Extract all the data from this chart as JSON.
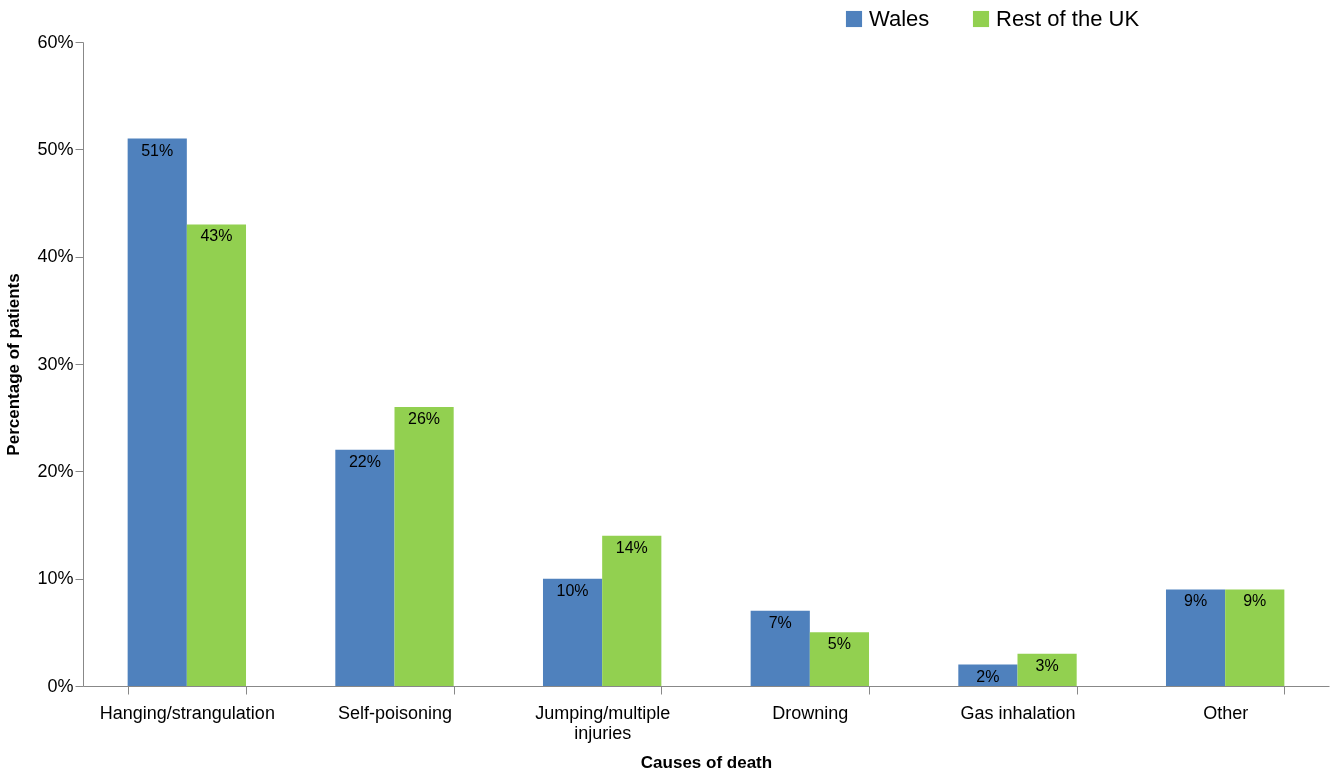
{
  "chart_data": {
    "type": "bar",
    "xlabel": "Causes of death",
    "ylabel": "Percentage of patients",
    "categories": [
      "Hanging/strangulation",
      "Self-poisoning",
      "Jumping/multiple injuries",
      "Drowning",
      "Gas inhalation",
      "Other"
    ],
    "series": [
      {
        "name": "Wales",
        "color": "#4f81bd",
        "values": [
          51,
          22,
          10,
          7,
          2,
          9
        ],
        "value_labels": [
          "51%",
          "22%",
          "10%",
          "7%",
          "2%",
          "9%"
        ]
      },
      {
        "name": "Rest of the UK",
        "color": "#92d050",
        "values": [
          43,
          26,
          14,
          5,
          3,
          9
        ],
        "value_labels": [
          "43%",
          "26%",
          "14%",
          "5%",
          "3%",
          "9%"
        ]
      }
    ],
    "ylim": [
      0,
      60
    ],
    "yticks": [
      {
        "value": 0,
        "label": "0%"
      },
      {
        "value": 10,
        "label": "10%"
      },
      {
        "value": 20,
        "label": "20%"
      },
      {
        "value": 30,
        "label": "30%"
      },
      {
        "value": 40,
        "label": "40%"
      },
      {
        "value": 50,
        "label": "50%"
      },
      {
        "value": 60,
        "label": "60%"
      }
    ],
    "grid": false,
    "legend": "top right"
  }
}
